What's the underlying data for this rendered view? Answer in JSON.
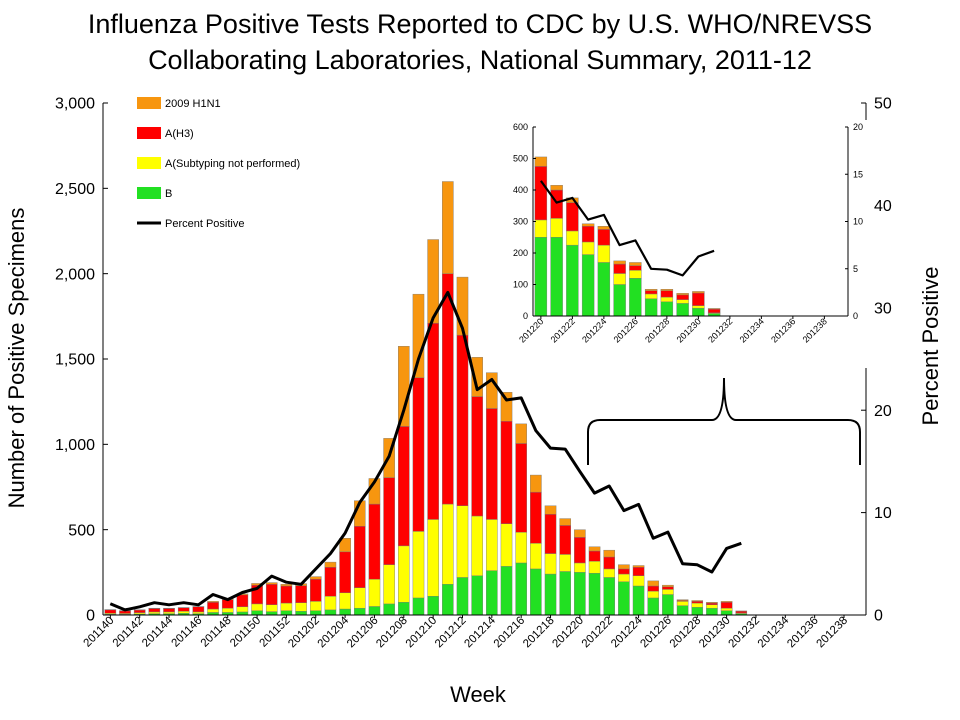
{
  "chart_data": [
    {
      "type": "bar",
      "stacked": true,
      "title_lines": [
        "Influenza Positive Tests Reported to CDC by U.S. WHO/NREVSS",
        "Collaborating Laboratories, National Summary, 2011-12"
      ],
      "xlabel": "Week",
      "ylabel": "Number of Positive Specimens",
      "y2label": "Percent Positive",
      "ylim": [
        0,
        3000
      ],
      "y2lim": [
        0,
        50
      ],
      "y_ticks": [
        "0",
        "500",
        "1,000",
        "1,500",
        "2,000",
        "2,500",
        "3,000"
      ],
      "y2_ticks": [
        "0",
        "10",
        "20",
        "30",
        "40",
        "50"
      ],
      "categories": [
        "201140",
        "201141",
        "201142",
        "201143",
        "201144",
        "201145",
        "201146",
        "201147",
        "201148",
        "201149",
        "201150",
        "201151",
        "201152",
        "201201",
        "201202",
        "201203",
        "201204",
        "201205",
        "201206",
        "201207",
        "201208",
        "201209",
        "201210",
        "201211",
        "201212",
        "201213",
        "201214",
        "201215",
        "201216",
        "201217",
        "201218",
        "201219",
        "201220",
        "201221",
        "201222",
        "201223",
        "201224",
        "201225",
        "201226",
        "201227",
        "201228",
        "201229",
        "201230",
        "201231",
        "201232",
        "201233",
        "201234",
        "201235",
        "201236",
        "201237",
        "201238",
        "201239"
      ],
      "tick_labels": [
        "201140",
        "201142",
        "201144",
        "201146",
        "201148",
        "201150",
        "201152",
        "201202",
        "201204",
        "201206",
        "201208",
        "201210",
        "201212",
        "201214",
        "201216",
        "201218",
        "201220",
        "201222",
        "201224",
        "201226",
        "201228",
        "201230",
        "201232",
        "201234",
        "201236",
        "201238"
      ],
      "legend_position": "top-left",
      "series": [
        {
          "name": "B",
          "color": "#22e022",
          "values": [
            5,
            4,
            6,
            8,
            8,
            10,
            8,
            15,
            15,
            18,
            25,
            20,
            25,
            22,
            25,
            30,
            35,
            40,
            50,
            65,
            75,
            100,
            110,
            180,
            220,
            230,
            260,
            285,
            305,
            270,
            240,
            255,
            250,
            245,
            220,
            195,
            170,
            100,
            120,
            55,
            45,
            40,
            25,
            8,
            0,
            0,
            0,
            0,
            0,
            0,
            0,
            0
          ]
        },
        {
          "name": "A(Subtyping not performed)",
          "color": "#ffff00",
          "values": [
            5,
            5,
            8,
            10,
            10,
            12,
            10,
            20,
            25,
            30,
            40,
            40,
            45,
            50,
            55,
            80,
            95,
            120,
            160,
            230,
            330,
            390,
            450,
            470,
            420,
            350,
            300,
            250,
            180,
            150,
            120,
            100,
            55,
            70,
            50,
            45,
            60,
            40,
            30,
            25,
            25,
            20,
            15,
            4,
            0,
            0,
            0,
            0,
            0,
            0,
            0,
            0
          ]
        },
        {
          "name": "A(H3)",
          "color": "#ff0000",
          "values": [
            20,
            15,
            15,
            20,
            20,
            20,
            30,
            40,
            50,
            70,
            110,
            120,
            100,
            100,
            130,
            170,
            240,
            360,
            440,
            510,
            700,
            900,
            1150,
            1350,
            1000,
            700,
            650,
            600,
            520,
            300,
            230,
            170,
            150,
            60,
            70,
            30,
            50,
            30,
            15,
            5,
            10,
            10,
            35,
            10,
            0,
            0,
            0,
            0,
            0,
            0,
            0,
            0
          ]
        },
        {
          "name": "2009 H1N1",
          "color": "#f7960f",
          "values": [
            2,
            2,
            2,
            2,
            2,
            2,
            2,
            5,
            5,
            6,
            10,
            10,
            10,
            12,
            15,
            30,
            80,
            150,
            150,
            230,
            470,
            490,
            490,
            540,
            340,
            230,
            210,
            170,
            115,
            100,
            50,
            40,
            45,
            25,
            40,
            25,
            10,
            30,
            10,
            5,
            5,
            5,
            5,
            2,
            0,
            0,
            0,
            0,
            0,
            0,
            0,
            0
          ]
        }
      ],
      "line_series": {
        "name": "Percent Positive",
        "color": "#000000",
        "axis": "y2",
        "values": [
          1.1,
          0.5,
          0.8,
          1.2,
          1.0,
          1.2,
          1.0,
          2.0,
          1.5,
          2.2,
          2.6,
          3.8,
          3.2,
          3.0,
          4.5,
          6.0,
          8.0,
          11.0,
          13.0,
          15.5,
          20.0,
          25.0,
          29.0,
          31.5,
          28.0,
          22.0,
          23.0,
          21.0,
          21.2,
          18.0,
          16.3,
          16.2,
          14.0,
          11.9,
          12.6,
          10.2,
          10.8,
          7.5,
          8.1,
          5.0,
          4.9,
          4.2,
          6.5,
          7.0,
          null,
          null,
          null,
          null,
          null,
          null,
          null,
          null
        ]
      }
    },
    {
      "type": "bar",
      "stacked": true,
      "inset": true,
      "ylim": [
        0,
        600
      ],
      "y2lim": [
        0,
        20
      ],
      "y_ticks": [
        "0",
        "100",
        "200",
        "300",
        "400",
        "500",
        "600"
      ],
      "y2_ticks": [
        "0",
        "5",
        "10",
        "15",
        "20"
      ],
      "categories": [
        "201220",
        "201221",
        "201222",
        "201223",
        "201224",
        "201225",
        "201226",
        "201227",
        "201228",
        "201229",
        "201230",
        "201231",
        "201232",
        "201233",
        "201234",
        "201235",
        "201236",
        "201237",
        "201238",
        "201239"
      ],
      "tick_labels": [
        "201220",
        "201222",
        "201224",
        "201226",
        "201228",
        "201230",
        "201232",
        "201234",
        "201236",
        "201238"
      ],
      "series": [
        {
          "name": "B",
          "color": "#22e022",
          "values": [
            250,
            250,
            225,
            195,
            170,
            100,
            120,
            55,
            45,
            40,
            25,
            8,
            0,
            0,
            0,
            0,
            0,
            0,
            0,
            0
          ]
        },
        {
          "name": "A(Subtyping not performed)",
          "color": "#ffff00",
          "values": [
            55,
            60,
            45,
            40,
            55,
            35,
            25,
            15,
            15,
            12,
            8,
            2,
            0,
            0,
            0,
            0,
            0,
            0,
            0,
            0
          ]
        },
        {
          "name": "A(H3)",
          "color": "#ff0000",
          "values": [
            170,
            90,
            90,
            50,
            50,
            30,
            15,
            10,
            20,
            15,
            40,
            12,
            0,
            0,
            0,
            0,
            0,
            0,
            0,
            0
          ]
        },
        {
          "name": "2009 H1N1",
          "color": "#f7960f",
          "values": [
            30,
            15,
            15,
            8,
            10,
            10,
            10,
            5,
            5,
            5,
            5,
            2,
            0,
            0,
            0,
            0,
            0,
            0,
            0,
            0
          ]
        }
      ],
      "line_series": {
        "name": "Percent Positive",
        "color": "#000000",
        "axis": "y2",
        "values": [
          14.3,
          12.0,
          12.5,
          10.2,
          10.7,
          7.5,
          8.0,
          5.0,
          4.9,
          4.3,
          6.3,
          6.9,
          null,
          null,
          null,
          null,
          null,
          null,
          null,
          null
        ]
      }
    }
  ]
}
